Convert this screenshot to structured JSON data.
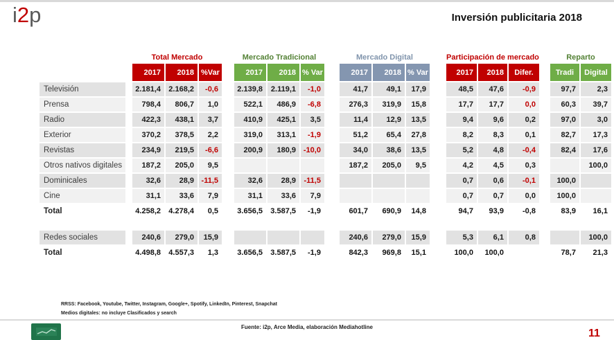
{
  "logo": {
    "gray1": "i",
    "red": "2",
    "gray2": "p"
  },
  "header": {
    "title": "Inversión publicitaria 2018"
  },
  "table": {
    "groups": [
      {
        "label": "Total Mercado",
        "color": "red",
        "columns": [
          "2017",
          "2018",
          "%Var"
        ]
      },
      {
        "label": "Mercado Tradicional",
        "color": "green",
        "columns": [
          "2017",
          "2018",
          "% Var"
        ]
      },
      {
        "label": "Mercado Digital",
        "color": "blue",
        "columns": [
          "2017",
          "2018",
          "% Var"
        ]
      },
      {
        "label": "Participación de mercado",
        "color": "red",
        "columns": [
          "2017",
          "2018",
          "Difer."
        ]
      },
      {
        "label": "Reparto",
        "color": "green",
        "columns": [
          "Tradi",
          "Digital"
        ]
      }
    ],
    "sections": [
      {
        "rows": [
          {
            "label": "Televisión",
            "type": "data",
            "values": [
              "2.181,4",
              "2.168,2",
              "-0,6",
              "2.139,8",
              "2.119,1",
              "-1,0",
              "41,7",
              "49,1",
              "17,9",
              "48,5",
              "47,6",
              "-0,9",
              "97,7",
              "2,3"
            ]
          },
          {
            "label": "Prensa",
            "type": "data",
            "values": [
              "798,4",
              "806,7",
              "1,0",
              "522,1",
              "486,9",
              "-6,8",
              "276,3",
              "319,9",
              "15,8",
              "17,7",
              "17,7",
              "0,0",
              "60,3",
              "39,7"
            ]
          },
          {
            "label": "Radio",
            "type": "data",
            "values": [
              "422,3",
              "438,1",
              "3,7",
              "410,9",
              "425,1",
              "3,5",
              "11,4",
              "12,9",
              "13,5",
              "9,4",
              "9,6",
              "0,2",
              "97,0",
              "3,0"
            ]
          },
          {
            "label": "Exterior",
            "type": "data",
            "values": [
              "370,2",
              "378,5",
              "2,2",
              "319,0",
              "313,1",
              "-1,9",
              "51,2",
              "65,4",
              "27,8",
              "8,2",
              "8,3",
              "0,1",
              "82,7",
              "17,3"
            ]
          },
          {
            "label": "Revistas",
            "type": "data",
            "values": [
              "234,9",
              "219,5",
              "-6,6",
              "200,9",
              "180,9",
              "-10,0",
              "34,0",
              "38,6",
              "13,5",
              "5,2",
              "4,8",
              "-0,4",
              "82,4",
              "17,6"
            ]
          },
          {
            "label": "Otros nativos digitales",
            "type": "data",
            "values": [
              "187,2",
              "205,0",
              "9,5",
              "",
              "",
              "",
              "187,2",
              "205,0",
              "9,5",
              "4,2",
              "4,5",
              "0,3",
              "",
              "100,0"
            ]
          },
          {
            "label": "Dominicales",
            "type": "data",
            "values": [
              "32,6",
              "28,9",
              "-11,5",
              "32,6",
              "28,9",
              "-11,5",
              "",
              "",
              "",
              "0,7",
              "0,6",
              "-0,1",
              "100,0",
              ""
            ]
          },
          {
            "label": "Cine",
            "type": "data",
            "values": [
              "31,1",
              "33,6",
              "7,9",
              "31,1",
              "33,6",
              "7,9",
              "",
              "",
              "",
              "0,7",
              "0,7",
              "0,0",
              "100,0",
              ""
            ]
          },
          {
            "label": "Total",
            "type": "total",
            "values": [
              "4.258,2",
              "4.278,4",
              "0,5",
              "3.656,5",
              "3.587,5",
              "-1,9",
              "601,7",
              "690,9",
              "14,8",
              "94,7",
              "93,9",
              "-0,8",
              "83,9",
              "16,1"
            ]
          }
        ]
      },
      {
        "rows": [
          {
            "label": "Redes sociales",
            "type": "data",
            "values": [
              "240,6",
              "279,0",
              "15,9",
              "",
              "",
              "",
              "240,6",
              "279,0",
              "15,9",
              "5,3",
              "6,1",
              "0,8",
              "",
              "100,0"
            ]
          },
          {
            "label": "Total",
            "type": "total",
            "values": [
              "4.498,8",
              "4.557,3",
              "1,3",
              "3.656,5",
              "3.587,5",
              "-1,9",
              "842,3",
              "969,8",
              "15,1",
              "100,0",
              "100,0",
              "",
              "78,7",
              "21,3"
            ]
          }
        ]
      }
    ],
    "red_value_cells": [
      [
        0,
        1,
        11
      ]
    ]
  },
  "footnotes": [
    "RRSS: Facebook, Youtube, Twitter, Instagram, Google+, Spotify, LinkedIn, Pinterest, Snapchat",
    "Medios digitales: no incluye Clasificados y search"
  ],
  "footer": {
    "source": "Fuente: i2p, Arce Media, elaboración Mediahotline",
    "page_number": "11"
  },
  "colors": {
    "accent_red": "#c00000",
    "accent_green": "#6fad47",
    "accent_blue_gray": "#8496b0",
    "green_dark": "#538135",
    "blue_gray_label": "#8094ac",
    "negative": "#c00000",
    "icon_green": "#20744a"
  }
}
